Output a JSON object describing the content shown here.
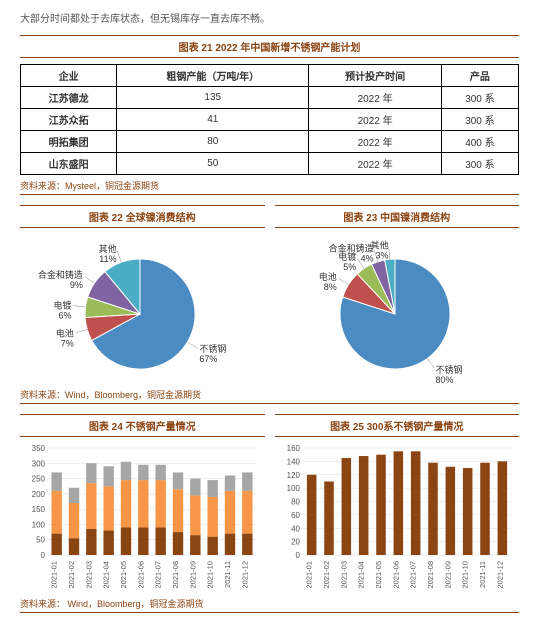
{
  "intro": "大部分时间都处于去库状态，但无锡库存一直去库不畅。",
  "table21": {
    "title": "图表 21 2022 年中国新增不锈钢产能计划",
    "headers": [
      "企业",
      "粗钢产能（万吨/年）",
      "预计投产时间",
      "产品"
    ],
    "rows": [
      [
        "江苏德龙",
        "135",
        "2022 年",
        "300 系"
      ],
      [
        "江苏众拓",
        "41",
        "2022 年",
        "300 系"
      ],
      [
        "明拓集团",
        "80",
        "2022 年",
        "400 系"
      ],
      [
        "山东盛阳",
        "50",
        "2022 年",
        "300 系"
      ]
    ],
    "source": "资料来源：Mysteel，铜冠金源期货"
  },
  "chart22": {
    "title": "图表 22  全球镍消费结构",
    "type": "pie",
    "slices": [
      {
        "label": "不锈钢",
        "value": 67,
        "color": "#4a8bc2"
      },
      {
        "label": "电池",
        "value": 7,
        "color": "#c0504d"
      },
      {
        "label": "电镀",
        "value": 6,
        "color": "#9bbb59"
      },
      {
        "label": "合金和铸造",
        "value": 9,
        "color": "#8064a2"
      },
      {
        "label": "其他",
        "value": 11,
        "color": "#4bacc6"
      }
    ]
  },
  "chart23": {
    "title": "图表 23 中国镍消费结构",
    "type": "pie",
    "slices": [
      {
        "label": "不锈钢",
        "value": 80,
        "color": "#4a8bc2"
      },
      {
        "label": "电池",
        "value": 8,
        "color": "#c0504d"
      },
      {
        "label": "电镀",
        "value": 5,
        "color": "#9bbb59"
      },
      {
        "label": "合金和铸造",
        "value": 4,
        "color": "#8064a2"
      },
      {
        "label": "其他",
        "value": 3,
        "color": "#4bacc6"
      }
    ]
  },
  "source_2223": "资料来源：Wind，Bloomberg，铜冠金源期货",
  "chart24": {
    "title": "图表 24  不锈钢产量情况",
    "type": "stacked-bar",
    "categories": [
      "2021-01",
      "2021-02",
      "2021-03",
      "2021-04",
      "2021-05",
      "2021-06",
      "2021-07",
      "2021-08",
      "2021-09",
      "2021-10",
      "2021-11",
      "2021-12"
    ],
    "ylim": [
      0,
      350
    ],
    "ytick_step": 50,
    "series": [
      {
        "name": "s1",
        "color": "#8b4513",
        "values": [
          70,
          55,
          85,
          80,
          90,
          90,
          90,
          75,
          65,
          60,
          70,
          70
        ]
      },
      {
        "name": "s2",
        "color": "#f79646",
        "values": [
          140,
          115,
          150,
          145,
          155,
          155,
          155,
          140,
          130,
          130,
          140,
          140
        ]
      },
      {
        "name": "s3",
        "color": "#a6a6a6",
        "values": [
          60,
          50,
          65,
          65,
          60,
          50,
          50,
          55,
          55,
          55,
          50,
          60
        ]
      }
    ],
    "grid_color": "#dddddd",
    "bar_width": 0.6
  },
  "chart25": {
    "title": "图表 25 300系不锈钢产量情况",
    "type": "bar",
    "categories": [
      "2021-01",
      "2021-02",
      "2021-03",
      "2021-04",
      "2021-05",
      "2021-06",
      "2021-07",
      "2021-08",
      "2021-09",
      "2021-10",
      "2021-11",
      "2021-12"
    ],
    "ylim": [
      0,
      160
    ],
    "ytick_step": 20,
    "values": [
      120,
      110,
      145,
      148,
      150,
      155,
      155,
      138,
      132,
      130,
      138,
      140
    ],
    "bar_color": "#8b4513",
    "grid_color": "#dddddd",
    "bar_width": 0.55
  },
  "source_2425": "资料来源： Wind，Bloomberg，铜冠金源期货"
}
